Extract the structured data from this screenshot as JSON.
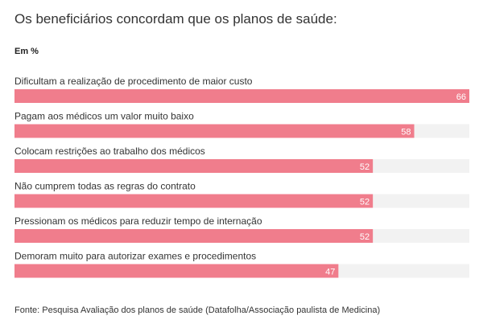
{
  "chart_data": {
    "type": "bar",
    "orientation": "horizontal",
    "title": "Os beneficiários concordam que os planos de saúde:",
    "subtitle": "Em %",
    "categories": [
      "Dificultam a realização de procedimento de maior custo",
      "Pagam aos médicos um valor muito baixo",
      "Colocam restrições ao trabalho dos médicos",
      "Não cumprem todas as regras do contrato",
      "Pressionam os médicos para reduzir tempo de internação",
      "Demoram muito para autorizar exames e procedimentos"
    ],
    "values": [
      66,
      58,
      52,
      52,
      52,
      47
    ],
    "xlim": [
      0,
      66
    ],
    "grid": false,
    "legend": "none",
    "colors": {
      "bar": "#f07d8c",
      "track": "#f2f2f2",
      "label": "#333333",
      "value": "#ffffff"
    }
  },
  "source": "Fonte: Pesquisa Avaliação dos planos de saúde (Datafolha/Associação paulista de Medicina)"
}
